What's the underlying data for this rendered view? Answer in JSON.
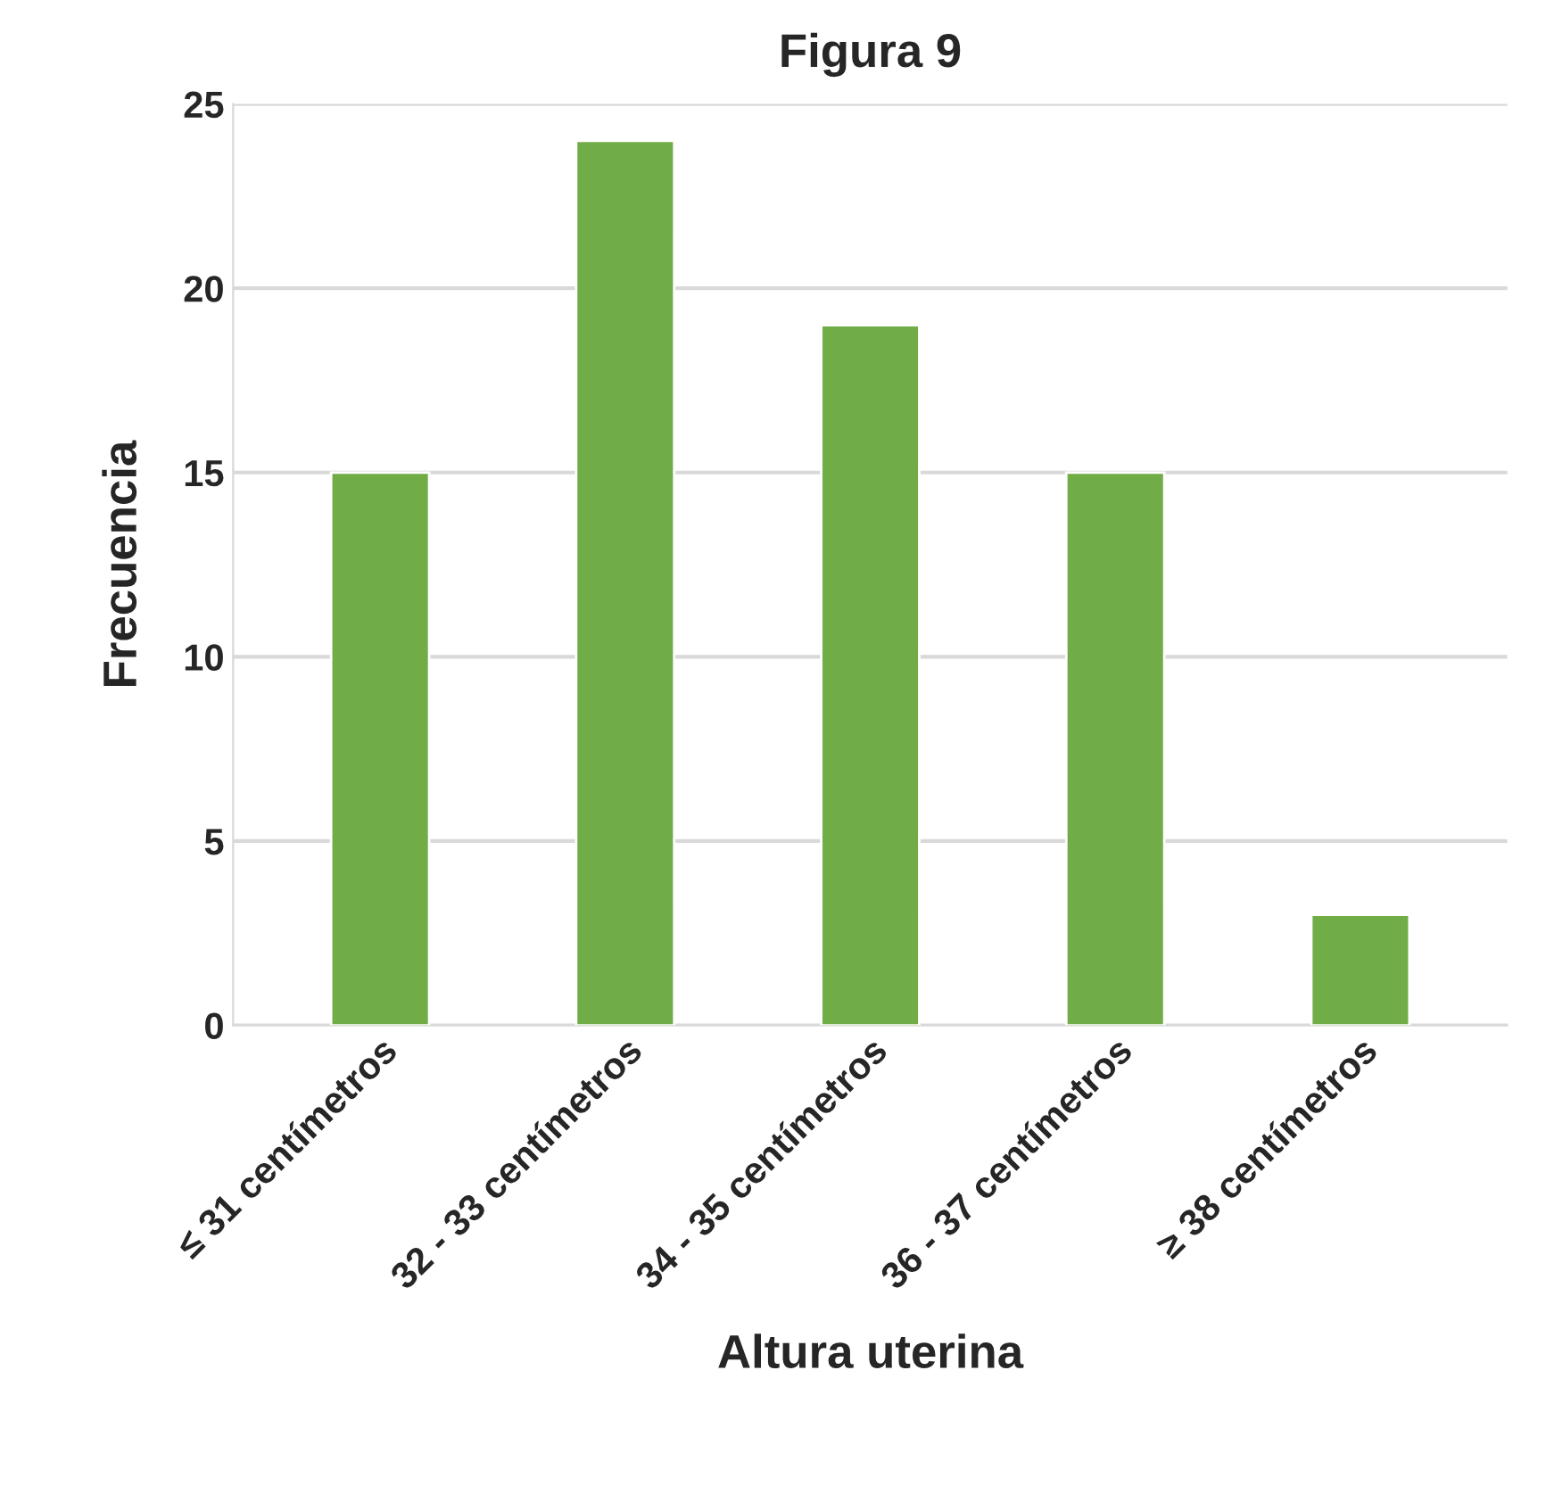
{
  "chart_data": {
    "type": "bar",
    "title": "Figura 9",
    "xlabel": "Altura uterina",
    "ylabel": "Frecuencia",
    "categories": [
      "≤ 31 centímetros",
      "32 - 33 centímetros",
      "34 - 35 centímetros",
      "36 - 37 centímetros",
      "≥ 38 centímetros"
    ],
    "values": [
      15,
      24,
      19,
      15,
      3
    ],
    "color": "#70ad47",
    "ylim": [
      0,
      25
    ],
    "yticks": [
      0,
      5,
      10,
      15,
      20,
      25
    ],
    "grid": "y"
  }
}
